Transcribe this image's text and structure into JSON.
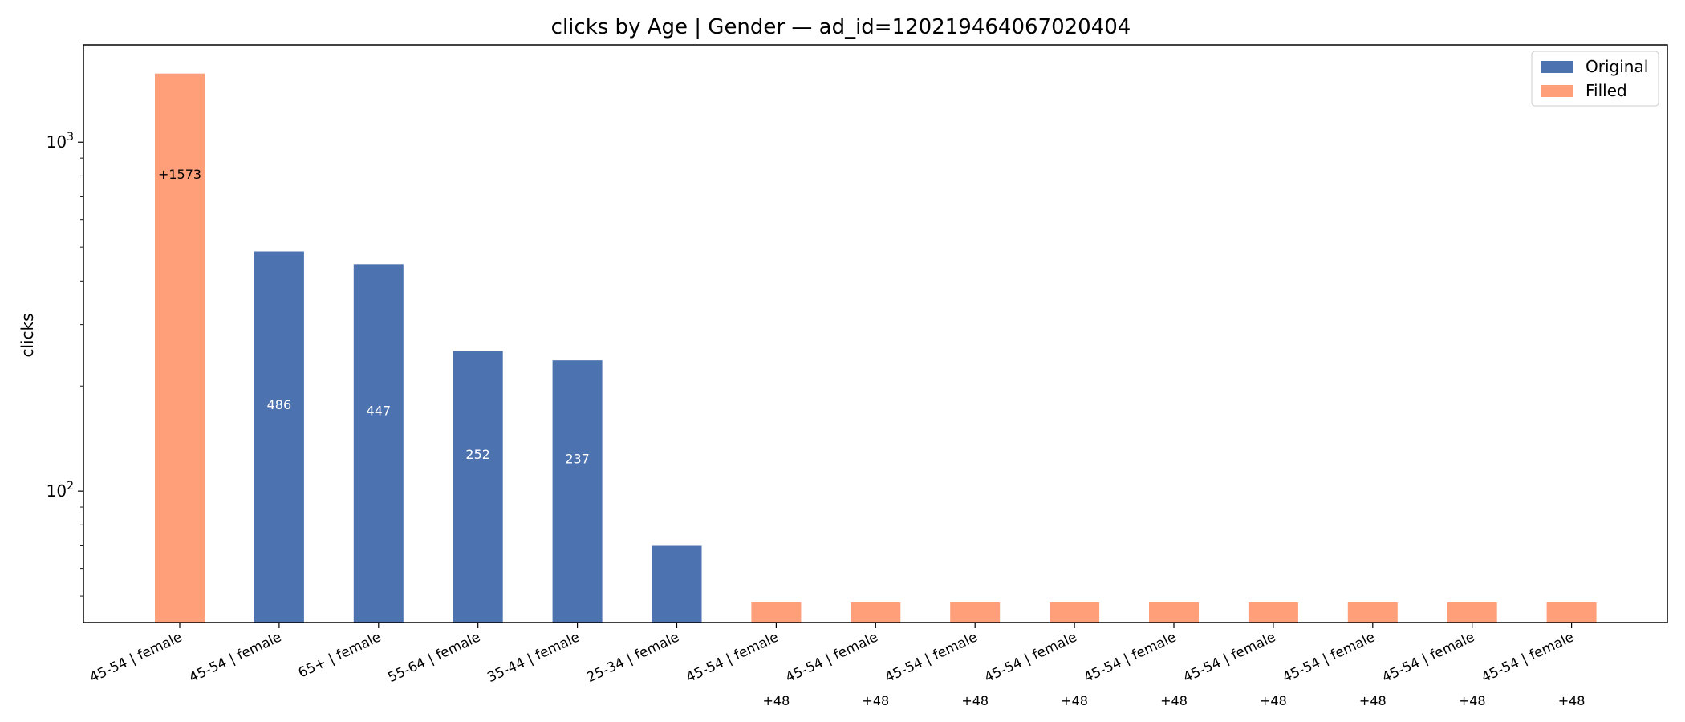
{
  "chart_data": {
    "type": "bar",
    "title": "clicks by Age | Gender — ad_id=120219464067020404",
    "xlabel": "",
    "ylabel": "clicks",
    "y_scale": "log",
    "ylim": [
      42,
      1900
    ],
    "y_ticks": [
      {
        "value": 100,
        "base": "10",
        "exp": "2"
      },
      {
        "value": 1000,
        "base": "10",
        "exp": "3"
      }
    ],
    "categories": [
      "45-54 | female",
      "45-54 | female",
      "65+ | female",
      "55-64 | female",
      "35-44 | female",
      "25-34 | female",
      "45-54 | female",
      "45-54 | female",
      "45-54 | female",
      "45-54 | female",
      "45-54 | female",
      "45-54 | female",
      "45-54 | female",
      "45-54 | female",
      "45-54 | female"
    ],
    "values": [
      1573,
      486,
      447,
      252,
      237,
      70,
      48,
      48,
      48,
      48,
      48,
      48,
      48,
      48,
      48
    ],
    "kinds": [
      "Filled",
      "Original",
      "Original",
      "Original",
      "Original",
      "Original",
      "Filled",
      "Filled",
      "Filled",
      "Filled",
      "Filled",
      "Filled",
      "Filled",
      "Filled",
      "Filled"
    ],
    "data_labels": [
      "+1573",
      "486",
      "447",
      "252",
      "237",
      "",
      "+48",
      "+48",
      "+48",
      "+48",
      "+48",
      "+48",
      "+48",
      "+48",
      "+48"
    ],
    "series": [
      {
        "name": "Original",
        "color": "#4c72b0"
      },
      {
        "name": "Filled",
        "color": "#ff9f7a"
      }
    ],
    "legend_position": "top-right",
    "grid": false
  }
}
